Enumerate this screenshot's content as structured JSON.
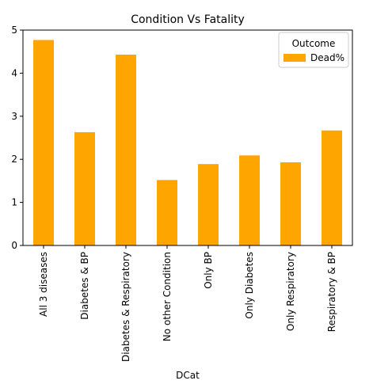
{
  "chart_data": {
    "type": "bar",
    "title": "Condition Vs Fatality",
    "xlabel": "DCat",
    "ylabel": "",
    "categories": [
      "All 3 diseases",
      "Diabetes & BP",
      "Diabetes & Respiratory",
      "No other Condition",
      "Only BP",
      "Only Diabetes",
      "Only Respiratory",
      "Respiratory & BP"
    ],
    "series": [
      {
        "name": "Dead%",
        "values": [
          4.77,
          2.63,
          4.43,
          1.52,
          1.89,
          2.09,
          1.93,
          2.67
        ]
      }
    ],
    "ylim": [
      0,
      5
    ],
    "yticks": [
      0,
      1,
      2,
      3,
      4,
      5
    ],
    "legend": {
      "title": "Outcome",
      "placement": "top-right"
    },
    "grid": false,
    "color": "#ffa500"
  }
}
